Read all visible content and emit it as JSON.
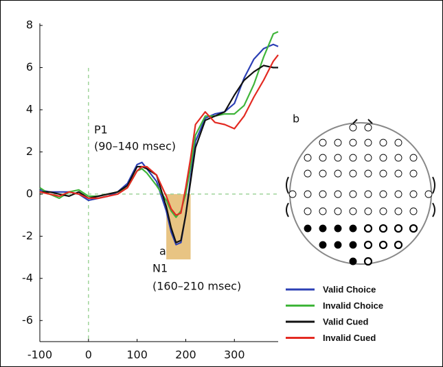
{
  "chart_data": {
    "type": "line",
    "x": [
      -100,
      -80,
      -60,
      -40,
      -20,
      0,
      20,
      40,
      60,
      80,
      100,
      110,
      120,
      140,
      160,
      170,
      180,
      190,
      200,
      210,
      220,
      240,
      260,
      280,
      300,
      320,
      340,
      360,
      380,
      390
    ],
    "series": [
      {
        "name": "Valid Choice",
        "color": "#2b3fb5",
        "values": [
          0.2,
          0.1,
          0.1,
          0.1,
          0,
          -0.3,
          -0.2,
          -0.1,
          0.1,
          0.5,
          1.4,
          1.5,
          1.2,
          0.6,
          -0.8,
          -1.8,
          -2.4,
          -2.3,
          -1.0,
          0.8,
          2.5,
          3.6,
          3.8,
          3.9,
          4.3,
          5.5,
          6.4,
          6.9,
          7.1,
          7.0
        ]
      },
      {
        "name": "Invalid Choice",
        "color": "#3fb53a",
        "values": [
          0.3,
          0,
          -0.2,
          0.1,
          0.2,
          -0.1,
          -0.1,
          0,
          0.1,
          0.3,
          1.1,
          1.2,
          1.0,
          0.4,
          -0.3,
          -0.8,
          -1.1,
          -0.8,
          0,
          1.3,
          2.8,
          3.7,
          3.7,
          3.8,
          3.8,
          4.2,
          5.2,
          6.5,
          7.6,
          7.7
        ]
      },
      {
        "name": "Valid Cued",
        "color": "#111111",
        "values": [
          0.1,
          0.1,
          0,
          -0.1,
          0.1,
          -0.2,
          -0.1,
          0,
          0.1,
          0.4,
          1.3,
          1.3,
          1.2,
          0.9,
          -0.6,
          -1.6,
          -2.3,
          -2.2,
          -1.0,
          0.6,
          2.2,
          3.5,
          3.7,
          3.9,
          4.7,
          5.4,
          5.8,
          6.1,
          6.0,
          6.0
        ]
      },
      {
        "name": "Invalid Cued",
        "color": "#e32a22",
        "values": [
          0.1,
          0,
          -0.1,
          0.1,
          0,
          -0.2,
          -0.2,
          -0.1,
          0,
          0.3,
          1.1,
          1.3,
          1.3,
          0.9,
          -0.1,
          -0.7,
          -1.0,
          -0.9,
          0.3,
          1.7,
          3.3,
          3.9,
          3.4,
          3.3,
          3.1,
          3.7,
          4.6,
          5.4,
          6.3,
          6.6
        ]
      }
    ],
    "xlim": [
      -100,
      390
    ],
    "ylim": [
      -7,
      8.1
    ],
    "xticks": [
      -100,
      0,
      100,
      200,
      300
    ],
    "yticks": [
      -6,
      -4,
      -2,
      0,
      2,
      4,
      6,
      8
    ],
    "highlight": {
      "x": [
        160,
        210
      ],
      "y": [
        -3.1,
        0
      ],
      "color": "#e8c483"
    },
    "annotations": {
      "p1": "P1",
      "p1_window": "(90–140 msec)",
      "panel_a": "a",
      "n1": "N1",
      "n1_window": "(160–210 msec)",
      "panel_b": "b"
    }
  }
}
